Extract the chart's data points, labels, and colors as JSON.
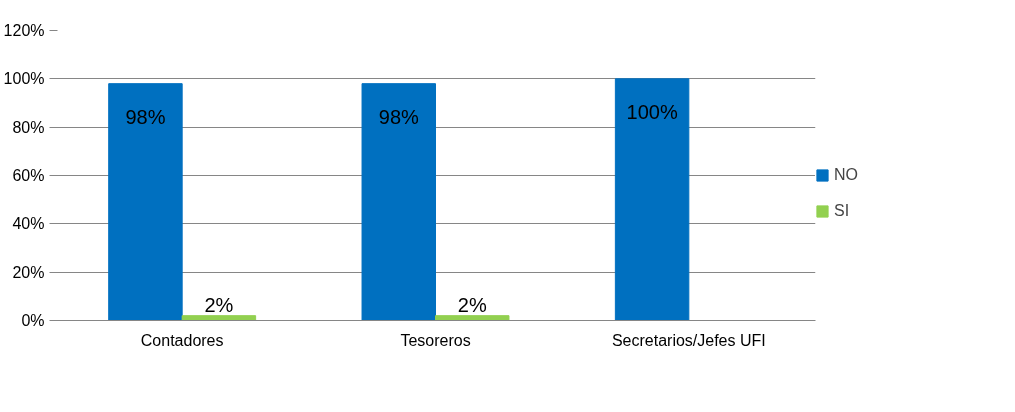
{
  "chart_data": {
    "type": "bar",
    "categories": [
      "Contadores",
      "Tesoreros",
      "Secretarios/Jefes UFI"
    ],
    "series": [
      {
        "name": "NO",
        "color": "#0070c0",
        "values": [
          98,
          98,
          100
        ],
        "value_labels": [
          "98%",
          "98%",
          "100%"
        ]
      },
      {
        "name": "SI",
        "color": "#92d050",
        "values": [
          2,
          2,
          null
        ],
        "value_labels": [
          "2%",
          "2%",
          null
        ]
      }
    ],
    "ylim": [
      0,
      120
    ],
    "yticks": [
      {
        "value": 0,
        "label": "0%"
      },
      {
        "value": 20,
        "label": "20%"
      },
      {
        "value": 40,
        "label": "40%"
      },
      {
        "value": 60,
        "label": "60%"
      },
      {
        "value": 80,
        "label": "80%"
      },
      {
        "value": 100,
        "label": "100%"
      },
      {
        "value": 120,
        "label": "120%"
      }
    ],
    "grid": "y",
    "legend": "right"
  }
}
